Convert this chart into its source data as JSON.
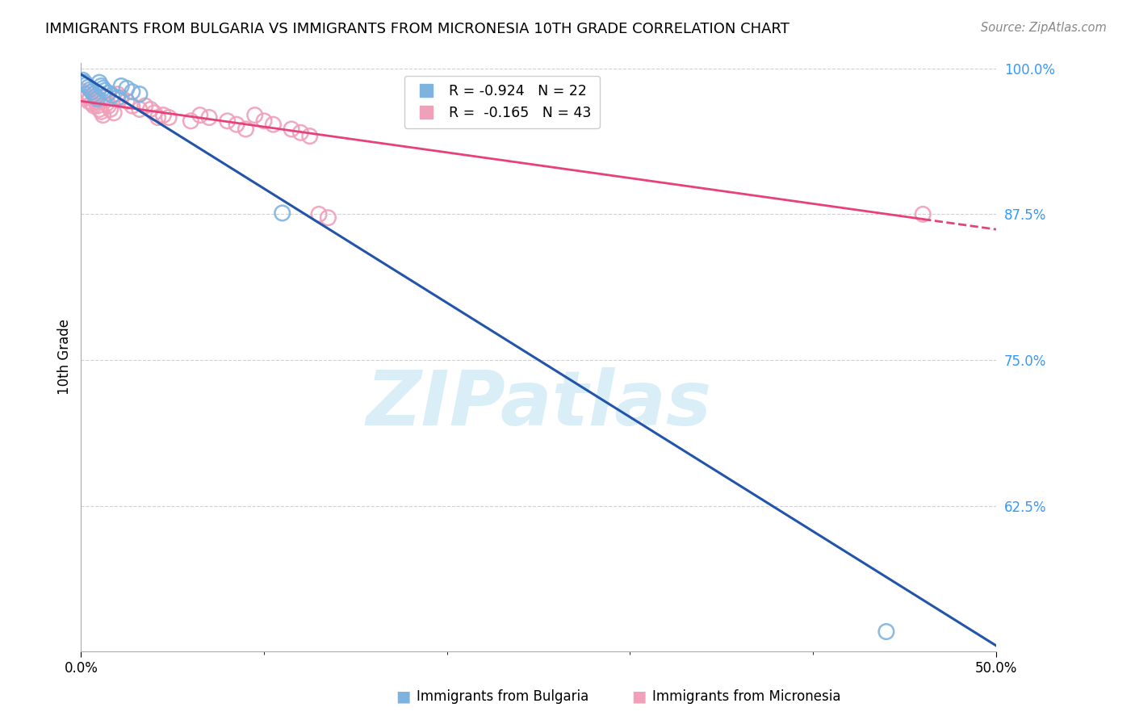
{
  "title": "IMMIGRANTS FROM BULGARIA VS IMMIGRANTS FROM MICRONESIA 10TH GRADE CORRELATION CHART",
  "source": "Source: ZipAtlas.com",
  "ylabel": "10th Grade",
  "xlim": [
    0.0,
    0.5
  ],
  "ylim": [
    0.5,
    1.005
  ],
  "ytick_positions_right": [
    1.0,
    0.875,
    0.75,
    0.625
  ],
  "ytick_labels_right": [
    "100.0%",
    "87.5%",
    "75.0%",
    "62.5%"
  ],
  "bulgaria_points": [
    [
      0.001,
      0.99
    ],
    [
      0.002,
      0.988
    ],
    [
      0.003,
      0.986
    ],
    [
      0.004,
      0.984
    ],
    [
      0.005,
      0.982
    ],
    [
      0.006,
      0.98
    ],
    [
      0.007,
      0.978
    ],
    [
      0.008,
      0.976
    ],
    [
      0.009,
      0.974
    ],
    [
      0.01,
      0.988
    ],
    [
      0.011,
      0.985
    ],
    [
      0.012,
      0.983
    ],
    [
      0.013,
      0.981
    ],
    [
      0.015,
      0.979
    ],
    [
      0.017,
      0.977
    ],
    [
      0.02,
      0.975
    ],
    [
      0.022,
      0.985
    ],
    [
      0.025,
      0.983
    ],
    [
      0.028,
      0.98
    ],
    [
      0.032,
      0.978
    ],
    [
      0.11,
      0.876
    ],
    [
      0.44,
      0.517
    ]
  ],
  "micronesia_points": [
    [
      0.001,
      0.98
    ],
    [
      0.002,
      0.978
    ],
    [
      0.003,
      0.975
    ],
    [
      0.004,
      0.972
    ],
    [
      0.005,
      0.975
    ],
    [
      0.006,
      0.97
    ],
    [
      0.007,
      0.968
    ],
    [
      0.008,
      0.972
    ],
    [
      0.009,
      0.968
    ],
    [
      0.01,
      0.965
    ],
    [
      0.011,
      0.963
    ],
    [
      0.012,
      0.96
    ],
    [
      0.013,
      0.975
    ],
    [
      0.014,
      0.97
    ],
    [
      0.015,
      0.968
    ],
    [
      0.016,
      0.965
    ],
    [
      0.018,
      0.962
    ],
    [
      0.02,
      0.978
    ],
    [
      0.022,
      0.975
    ],
    [
      0.025,
      0.972
    ],
    [
      0.028,
      0.968
    ],
    [
      0.032,
      0.965
    ],
    [
      0.035,
      0.968
    ],
    [
      0.038,
      0.965
    ],
    [
      0.04,
      0.962
    ],
    [
      0.042,
      0.958
    ],
    [
      0.045,
      0.96
    ],
    [
      0.048,
      0.958
    ],
    [
      0.06,
      0.955
    ],
    [
      0.065,
      0.96
    ],
    [
      0.07,
      0.958
    ],
    [
      0.08,
      0.955
    ],
    [
      0.085,
      0.952
    ],
    [
      0.09,
      0.948
    ],
    [
      0.095,
      0.96
    ],
    [
      0.1,
      0.955
    ],
    [
      0.105,
      0.952
    ],
    [
      0.115,
      0.948
    ],
    [
      0.12,
      0.945
    ],
    [
      0.125,
      0.942
    ],
    [
      0.13,
      0.875
    ],
    [
      0.135,
      0.872
    ],
    [
      0.46,
      0.875
    ]
  ],
  "bulgaria_color": "#7eb3e0",
  "micronesia_color": "#f0a0b8",
  "bulgaria_line_color": "#2255aa",
  "micronesia_line_color": "#e8407a",
  "bg_color": "#ffffff",
  "grid_color": "#cccccc",
  "watermark_text": "ZIPatlas",
  "watermark_color": "#daeef8"
}
